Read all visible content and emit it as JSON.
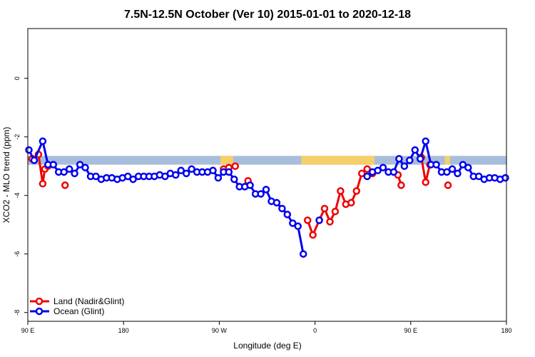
{
  "chart_data": {
    "type": "line",
    "title": "7.5N-12.5N October (Ver 10)   2015-01-01 to 2020-12-18",
    "xlabel": "Longitude (deg E)",
    "ylabel": "XCO2 - MLO trend (ppm)",
    "xlim": [
      0,
      450
    ],
    "ylim": [
      -8.3,
      1.7
    ],
    "x_ticks": [
      {
        "value": 0,
        "label": "90 E"
      },
      {
        "value": 90,
        "label": "180"
      },
      {
        "value": 180,
        "label": "90 W"
      },
      {
        "value": 270,
        "label": "0"
      },
      {
        "value": 360,
        "label": "90 E"
      },
      {
        "value": 450,
        "label": "180"
      }
    ],
    "y_ticks": [
      0,
      -2,
      -4,
      -6,
      -8
    ],
    "grid": false,
    "legend_position": "bottom-left",
    "land_band": {
      "color": "#a7bddb",
      "land_color": "#f5cf6a",
      "y_range": [
        -2.65,
        -2.95
      ],
      "land_segments": [
        [
          181,
          193
        ],
        [
          257,
          326
        ],
        [
          392,
          397
        ]
      ]
    },
    "series": [
      {
        "name": "Land (Nadir&Glint)",
        "color": "#ee0000",
        "segments": [
          [
            [
              4,
              -2.75
            ],
            [
              10,
              -2.6
            ],
            [
              14,
              -3.6
            ],
            [
              16,
              -3.1
            ],
            [
              19,
              -3.0
            ]
          ],
          [
            [
              35,
              -3.65
            ]
          ],
          [
            [
              184,
              -3.1
            ],
            [
              189,
              -3.05
            ],
            [
              195,
              -3.0
            ]
          ],
          [
            [
              207,
              -3.5
            ]
          ],
          [
            [
              263,
              -4.85
            ],
            [
              268,
              -5.35
            ],
            [
              274,
              -4.85
            ],
            [
              279,
              -4.45
            ],
            [
              284,
              -4.9
            ],
            [
              289,
              -4.55
            ],
            [
              294,
              -3.85
            ],
            [
              299,
              -4.3
            ],
            [
              304,
              -4.25
            ],
            [
              309,
              -3.85
            ],
            [
              314,
              -3.25
            ],
            [
              319,
              -3.1
            ],
            [
              324,
              -3.25
            ]
          ],
          [
            [
              348,
              -3.3
            ],
            [
              351,
              -3.65
            ]
          ],
          [
            [
              370,
              -2.7
            ],
            [
              374,
              -3.55
            ],
            [
              378,
              -2.95
            ]
          ],
          [
            [
              395,
              -3.65
            ]
          ]
        ]
      },
      {
        "name": "Ocean (Glint)",
        "color": "#0000ee",
        "segments": [
          [
            [
              1,
              -2.45
            ],
            [
              6,
              -2.8
            ],
            [
              14,
              -2.15
            ],
            [
              19,
              -2.95
            ],
            [
              24,
              -2.95
            ],
            [
              29,
              -3.2
            ],
            [
              34,
              -3.2
            ],
            [
              39,
              -3.1
            ],
            [
              44,
              -3.25
            ],
            [
              49,
              -2.95
            ],
            [
              54,
              -3.05
            ],
            [
              59,
              -3.35
            ],
            [
              64,
              -3.35
            ],
            [
              69,
              -3.45
            ],
            [
              74,
              -3.4
            ],
            [
              79,
              -3.4
            ],
            [
              84,
              -3.45
            ],
            [
              89,
              -3.4
            ],
            [
              94,
              -3.35
            ],
            [
              99,
              -3.45
            ],
            [
              104,
              -3.35
            ],
            [
              109,
              -3.35
            ],
            [
              114,
              -3.35
            ],
            [
              119,
              -3.35
            ],
            [
              124,
              -3.3
            ],
            [
              129,
              -3.35
            ],
            [
              134,
              -3.25
            ],
            [
              139,
              -3.3
            ],
            [
              144,
              -3.15
            ],
            [
              149,
              -3.25
            ],
            [
              154,
              -3.1
            ],
            [
              159,
              -3.2
            ],
            [
              164,
              -3.2
            ],
            [
              169,
              -3.2
            ],
            [
              174,
              -3.15
            ],
            [
              179,
              -3.4
            ],
            [
              184,
              -3.2
            ],
            [
              189,
              -3.2
            ],
            [
              194,
              -3.45
            ],
            [
              199,
              -3.7
            ],
            [
              204,
              -3.7
            ],
            [
              209,
              -3.65
            ],
            [
              214,
              -3.95
            ],
            [
              219,
              -3.95
            ],
            [
              224,
              -3.8
            ],
            [
              229,
              -4.2
            ],
            [
              234,
              -4.25
            ],
            [
              239,
              -4.45
            ],
            [
              244,
              -4.65
            ],
            [
              249,
              -4.95
            ],
            [
              254,
              -5.05
            ],
            [
              259,
              -6.0
            ]
          ],
          [
            [
              274,
              -4.85
            ]
          ],
          [
            [
              319,
              -3.35
            ],
            [
              324,
              -3.2
            ],
            [
              329,
              -3.15
            ],
            [
              334,
              -3.05
            ],
            [
              339,
              -3.2
            ],
            [
              344,
              -3.2
            ],
            [
              349,
              -2.75
            ],
            [
              354,
              -3.0
            ],
            [
              359,
              -2.8
            ],
            [
              364,
              -2.45
            ],
            [
              369,
              -2.75
            ],
            [
              374,
              -2.15
            ],
            [
              379,
              -2.95
            ],
            [
              384,
              -2.95
            ],
            [
              389,
              -3.2
            ],
            [
              394,
              -3.2
            ],
            [
              399,
              -3.1
            ],
            [
              404,
              -3.25
            ],
            [
              409,
              -2.95
            ],
            [
              414,
              -3.05
            ],
            [
              419,
              -3.35
            ],
            [
              424,
              -3.35
            ],
            [
              429,
              -3.45
            ],
            [
              434,
              -3.4
            ],
            [
              439,
              -3.4
            ],
            [
              444,
              -3.45
            ],
            [
              449,
              -3.4
            ]
          ]
        ]
      }
    ]
  }
}
